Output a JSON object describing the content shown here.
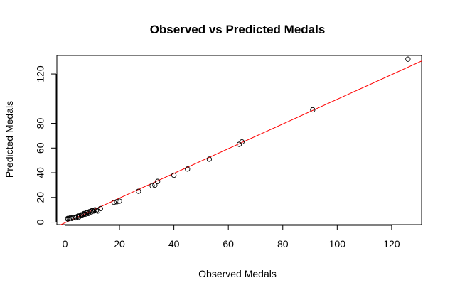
{
  "chart_data": {
    "type": "scatter",
    "title": "Observed vs Predicted Medals",
    "xlabel": "Observed Medals",
    "ylabel": "Predicted Medals",
    "xlim": [
      -3,
      131
    ],
    "ylim": [
      -2,
      135
    ],
    "x_ticks": [
      0,
      20,
      40,
      60,
      80,
      100,
      120
    ],
    "y_ticks": [
      0,
      20,
      40,
      60,
      80,
      120
    ],
    "grid": false,
    "series": [
      {
        "name": "countries",
        "marker": "open-circle",
        "color": "#000000",
        "points": [
          {
            "x": 1,
            "y": 3
          },
          {
            "x": 1,
            "y": 2.5
          },
          {
            "x": 1.5,
            "y": 3
          },
          {
            "x": 2,
            "y": 3.5
          },
          {
            "x": 2.5,
            "y": 3
          },
          {
            "x": 3,
            "y": 3.5
          },
          {
            "x": 4,
            "y": 4
          },
          {
            "x": 4,
            "y": 3.5
          },
          {
            "x": 4.5,
            "y": 4.5
          },
          {
            "x": 5,
            "y": 4
          },
          {
            "x": 5,
            "y": 5
          },
          {
            "x": 5.5,
            "y": 5
          },
          {
            "x": 6,
            "y": 5.5
          },
          {
            "x": 6,
            "y": 6
          },
          {
            "x": 6.5,
            "y": 6
          },
          {
            "x": 7,
            "y": 6.5
          },
          {
            "x": 7,
            "y": 7
          },
          {
            "x": 7.5,
            "y": 6.5
          },
          {
            "x": 8,
            "y": 7.5
          },
          {
            "x": 8,
            "y": 8
          },
          {
            "x": 8.5,
            "y": 7
          },
          {
            "x": 9,
            "y": 8.5
          },
          {
            "x": 9.5,
            "y": 8
          },
          {
            "x": 10,
            "y": 9
          },
          {
            "x": 10,
            "y": 9.5
          },
          {
            "x": 10.5,
            "y": 9
          },
          {
            "x": 11,
            "y": 10
          },
          {
            "x": 11.5,
            "y": 9.5
          },
          {
            "x": 12,
            "y": 9
          },
          {
            "x": 13,
            "y": 11
          },
          {
            "x": 18,
            "y": 16
          },
          {
            "x": 19,
            "y": 16.5
          },
          {
            "x": 20,
            "y": 17
          },
          {
            "x": 27,
            "y": 25
          },
          {
            "x": 32,
            "y": 29.5
          },
          {
            "x": 33,
            "y": 30
          },
          {
            "x": 34,
            "y": 33
          },
          {
            "x": 40,
            "y": 38
          },
          {
            "x": 45,
            "y": 43
          },
          {
            "x": 53,
            "y": 51
          },
          {
            "x": 64,
            "y": 63
          },
          {
            "x": 65,
            "y": 65
          },
          {
            "x": 91,
            "y": 91
          },
          {
            "x": 126,
            "y": 132
          }
        ]
      }
    ],
    "reference_line": {
      "name": "fit-line",
      "color": "#ff0000",
      "intercept": -0.5,
      "slope": 1.0
    }
  }
}
